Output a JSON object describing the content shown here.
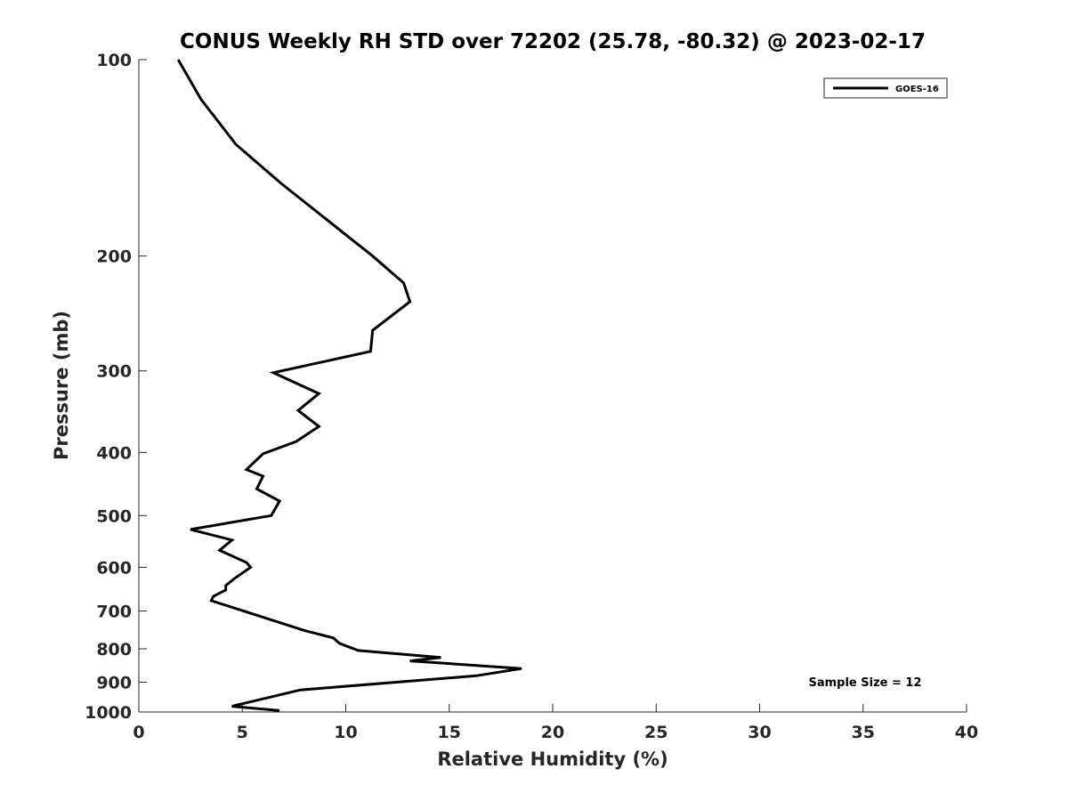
{
  "chart_data": {
    "type": "line",
    "title": "CONUS Weekly RH STD over 72202 (25.78, -80.32) @ 2023-02-17",
    "xlabel": "Relative Humidity (%)",
    "ylabel": "Pressure (mb)",
    "xlim": [
      0,
      40
    ],
    "ylim": [
      100,
      1000
    ],
    "y_scale": "log",
    "y_reversed": true,
    "xticks": [
      0,
      5,
      10,
      15,
      20,
      25,
      30,
      35,
      40
    ],
    "yticks": [
      100,
      200,
      300,
      400,
      500,
      600,
      700,
      800,
      900,
      1000
    ],
    "grid": false,
    "legend_position": "top-right",
    "series": [
      {
        "name": "GOES-16",
        "color": "#000000",
        "x": [
          1.9,
          3.0,
          4.7,
          6.9,
          11.3,
          12.8,
          13.1,
          11.3,
          11.2,
          6.5,
          8.7,
          7.7,
          8.7,
          7.6,
          6.0,
          5.2,
          6.0,
          5.7,
          6.8,
          6.4,
          2.5,
          4.5,
          3.9,
          5.2,
          5.4,
          4.6,
          4.2,
          4.2,
          3.6,
          3.5,
          8.0,
          9.4,
          9.7,
          10.6,
          14.6,
          13.1,
          18.5,
          16.3,
          7.8,
          4.5,
          6.8
        ],
        "y": [
          100,
          115,
          135,
          155,
          200,
          220,
          235,
          260,
          280,
          302,
          325,
          345,
          365,
          385,
          402,
          425,
          435,
          455,
          475,
          500,
          525,
          545,
          565,
          590,
          600,
          625,
          640,
          650,
          665,
          675,
          750,
          770,
          785,
          805,
          825,
          835,
          858,
          880,
          925,
          980,
          995
        ]
      }
    ],
    "annotations": [
      {
        "text": "Sample Size = 12",
        "x": 35,
        "y": 900
      }
    ]
  },
  "colors": {
    "line": "#000000",
    "axis": "#262626",
    "background": "#ffffff"
  }
}
